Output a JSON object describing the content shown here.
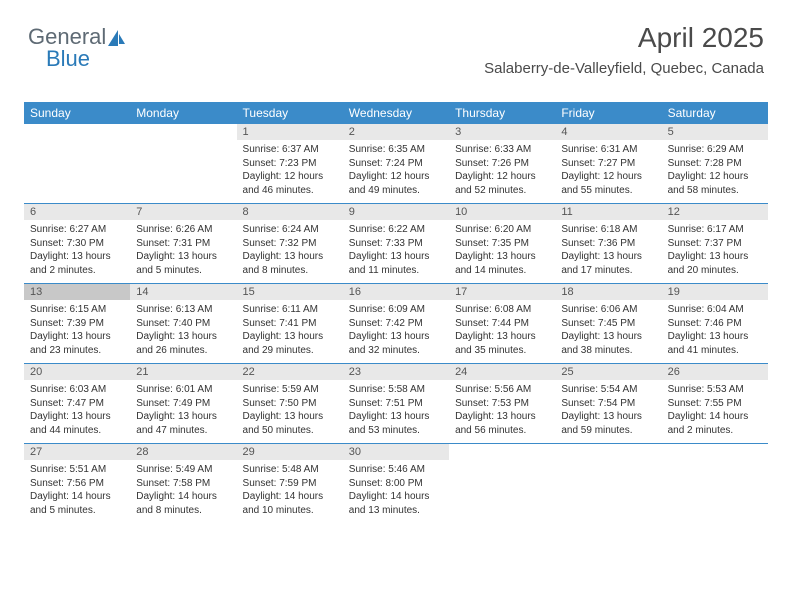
{
  "logo": {
    "text1": "General",
    "text2": "Blue"
  },
  "header": {
    "month": "April 2025",
    "location": "Salaberry-de-Valleyfield, Quebec, Canada"
  },
  "colors": {
    "header_bg": "#3b8bc9",
    "header_text": "#ffffff",
    "daynum_bg": "#e8e8e8",
    "today_bg": "#c8c8c8",
    "row_border": "#3b8bc9",
    "text": "#333333",
    "logo_gray": "#5e6a74",
    "logo_blue": "#2a7ab8"
  },
  "weekdays": [
    "Sunday",
    "Monday",
    "Tuesday",
    "Wednesday",
    "Thursday",
    "Friday",
    "Saturday"
  ],
  "weeks": [
    [
      null,
      null,
      {
        "n": "1",
        "sunrise": "Sunrise: 6:37 AM",
        "sunset": "Sunset: 7:23 PM",
        "daylight": "Daylight: 12 hours and 46 minutes."
      },
      {
        "n": "2",
        "sunrise": "Sunrise: 6:35 AM",
        "sunset": "Sunset: 7:24 PM",
        "daylight": "Daylight: 12 hours and 49 minutes."
      },
      {
        "n": "3",
        "sunrise": "Sunrise: 6:33 AM",
        "sunset": "Sunset: 7:26 PM",
        "daylight": "Daylight: 12 hours and 52 minutes."
      },
      {
        "n": "4",
        "sunrise": "Sunrise: 6:31 AM",
        "sunset": "Sunset: 7:27 PM",
        "daylight": "Daylight: 12 hours and 55 minutes."
      },
      {
        "n": "5",
        "sunrise": "Sunrise: 6:29 AM",
        "sunset": "Sunset: 7:28 PM",
        "daylight": "Daylight: 12 hours and 58 minutes."
      }
    ],
    [
      {
        "n": "6",
        "sunrise": "Sunrise: 6:27 AM",
        "sunset": "Sunset: 7:30 PM",
        "daylight": "Daylight: 13 hours and 2 minutes."
      },
      {
        "n": "7",
        "sunrise": "Sunrise: 6:26 AM",
        "sunset": "Sunset: 7:31 PM",
        "daylight": "Daylight: 13 hours and 5 minutes."
      },
      {
        "n": "8",
        "sunrise": "Sunrise: 6:24 AM",
        "sunset": "Sunset: 7:32 PM",
        "daylight": "Daylight: 13 hours and 8 minutes."
      },
      {
        "n": "9",
        "sunrise": "Sunrise: 6:22 AM",
        "sunset": "Sunset: 7:33 PM",
        "daylight": "Daylight: 13 hours and 11 minutes."
      },
      {
        "n": "10",
        "sunrise": "Sunrise: 6:20 AM",
        "sunset": "Sunset: 7:35 PM",
        "daylight": "Daylight: 13 hours and 14 minutes."
      },
      {
        "n": "11",
        "sunrise": "Sunrise: 6:18 AM",
        "sunset": "Sunset: 7:36 PM",
        "daylight": "Daylight: 13 hours and 17 minutes."
      },
      {
        "n": "12",
        "sunrise": "Sunrise: 6:17 AM",
        "sunset": "Sunset: 7:37 PM",
        "daylight": "Daylight: 13 hours and 20 minutes."
      }
    ],
    [
      {
        "n": "13",
        "today": true,
        "sunrise": "Sunrise: 6:15 AM",
        "sunset": "Sunset: 7:39 PM",
        "daylight": "Daylight: 13 hours and 23 minutes."
      },
      {
        "n": "14",
        "sunrise": "Sunrise: 6:13 AM",
        "sunset": "Sunset: 7:40 PM",
        "daylight": "Daylight: 13 hours and 26 minutes."
      },
      {
        "n": "15",
        "sunrise": "Sunrise: 6:11 AM",
        "sunset": "Sunset: 7:41 PM",
        "daylight": "Daylight: 13 hours and 29 minutes."
      },
      {
        "n": "16",
        "sunrise": "Sunrise: 6:09 AM",
        "sunset": "Sunset: 7:42 PM",
        "daylight": "Daylight: 13 hours and 32 minutes."
      },
      {
        "n": "17",
        "sunrise": "Sunrise: 6:08 AM",
        "sunset": "Sunset: 7:44 PM",
        "daylight": "Daylight: 13 hours and 35 minutes."
      },
      {
        "n": "18",
        "sunrise": "Sunrise: 6:06 AM",
        "sunset": "Sunset: 7:45 PM",
        "daylight": "Daylight: 13 hours and 38 minutes."
      },
      {
        "n": "19",
        "sunrise": "Sunrise: 6:04 AM",
        "sunset": "Sunset: 7:46 PM",
        "daylight": "Daylight: 13 hours and 41 minutes."
      }
    ],
    [
      {
        "n": "20",
        "sunrise": "Sunrise: 6:03 AM",
        "sunset": "Sunset: 7:47 PM",
        "daylight": "Daylight: 13 hours and 44 minutes."
      },
      {
        "n": "21",
        "sunrise": "Sunrise: 6:01 AM",
        "sunset": "Sunset: 7:49 PM",
        "daylight": "Daylight: 13 hours and 47 minutes."
      },
      {
        "n": "22",
        "sunrise": "Sunrise: 5:59 AM",
        "sunset": "Sunset: 7:50 PM",
        "daylight": "Daylight: 13 hours and 50 minutes."
      },
      {
        "n": "23",
        "sunrise": "Sunrise: 5:58 AM",
        "sunset": "Sunset: 7:51 PM",
        "daylight": "Daylight: 13 hours and 53 minutes."
      },
      {
        "n": "24",
        "sunrise": "Sunrise: 5:56 AM",
        "sunset": "Sunset: 7:53 PM",
        "daylight": "Daylight: 13 hours and 56 minutes."
      },
      {
        "n": "25",
        "sunrise": "Sunrise: 5:54 AM",
        "sunset": "Sunset: 7:54 PM",
        "daylight": "Daylight: 13 hours and 59 minutes."
      },
      {
        "n": "26",
        "sunrise": "Sunrise: 5:53 AM",
        "sunset": "Sunset: 7:55 PM",
        "daylight": "Daylight: 14 hours and 2 minutes."
      }
    ],
    [
      {
        "n": "27",
        "sunrise": "Sunrise: 5:51 AM",
        "sunset": "Sunset: 7:56 PM",
        "daylight": "Daylight: 14 hours and 5 minutes."
      },
      {
        "n": "28",
        "sunrise": "Sunrise: 5:49 AM",
        "sunset": "Sunset: 7:58 PM",
        "daylight": "Daylight: 14 hours and 8 minutes."
      },
      {
        "n": "29",
        "sunrise": "Sunrise: 5:48 AM",
        "sunset": "Sunset: 7:59 PM",
        "daylight": "Daylight: 14 hours and 10 minutes."
      },
      {
        "n": "30",
        "sunrise": "Sunrise: 5:46 AM",
        "sunset": "Sunset: 8:00 PM",
        "daylight": "Daylight: 14 hours and 13 minutes."
      },
      null,
      null,
      null
    ]
  ]
}
